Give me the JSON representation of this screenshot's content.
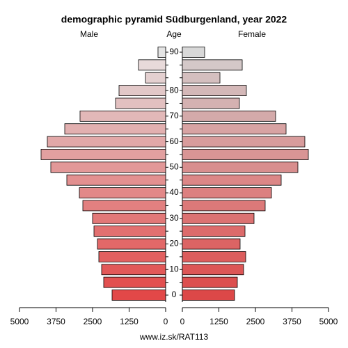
{
  "chart_data": {
    "type": "pyramid",
    "title": "demographic pyramid Südburgenland, year 2022",
    "y_label": "Age",
    "footer": "www.iz.sk/RAT113",
    "categories": [
      "0",
      null,
      "10",
      null,
      "20",
      null,
      "30",
      null,
      "40",
      null,
      "50",
      null,
      "60",
      null,
      "70",
      null,
      "80",
      null,
      null,
      "90"
    ],
    "series": [
      {
        "name": "Male",
        "side": "left",
        "values": [
          1833,
          2119,
          2190,
          2286,
          2333,
          2452,
          2500,
          2833,
          2952,
          3381,
          3929,
          4262,
          4048,
          3452,
          2929,
          1714,
          1595,
          690,
          929,
          262
        ],
        "colors": [
          "#e24848",
          "#e25050",
          "#e25858",
          "#e26060",
          "#e26868",
          "#e27070",
          "#e27878",
          "#e28080",
          "#e28888",
          "#e29090",
          "#e29898",
          "#e2a0a0",
          "#e2a8a8",
          "#e2b0b0",
          "#e2b8b8",
          "#e2c0c0",
          "#e2c8c8",
          "#e4d0d0",
          "#e8dada",
          "#e4e4e4"
        ]
      },
      {
        "name": "Female",
        "side": "right",
        "values": [
          1786,
          1881,
          2095,
          2167,
          1976,
          2143,
          2452,
          2833,
          3048,
          3381,
          3952,
          4310,
          4190,
          3548,
          3190,
          1952,
          2190,
          1286,
          2048,
          762
        ],
        "colors": [
          "#dc4848",
          "#dc4f4f",
          "#dc5656",
          "#dc5d5d",
          "#dc6464",
          "#dc6b6b",
          "#dc7272",
          "#dc7979",
          "#dc8080",
          "#dc8787",
          "#d88e8e",
          "#d89595",
          "#d89c9c",
          "#d8a3a3",
          "#d4aaaa",
          "#d4b1b1",
          "#d4b8b8",
          "#d4bfbf",
          "#d4c8c8",
          "#d8d8d8"
        ]
      }
    ],
    "xlim": [
      0,
      5000
    ],
    "xticks": [
      0,
      1250,
      2500,
      3750,
      5000
    ]
  }
}
